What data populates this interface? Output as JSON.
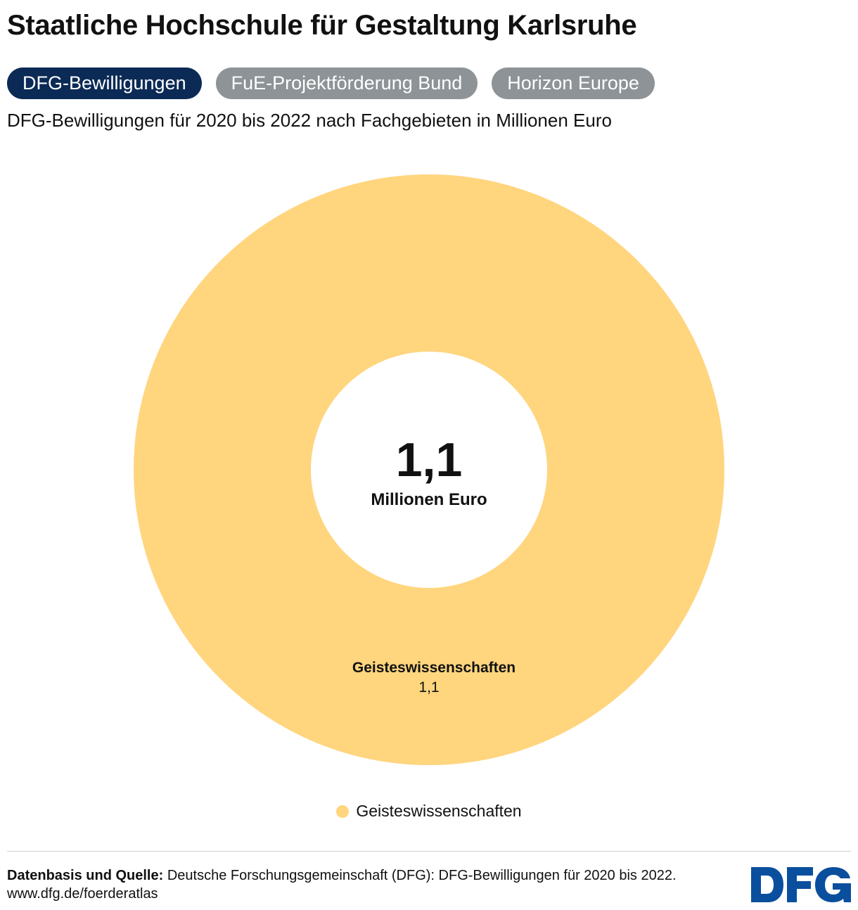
{
  "title": "Staatliche Hochschule für Gestaltung Karlsruhe",
  "tabs": [
    {
      "label": "DFG-Bewilligungen",
      "active": true
    },
    {
      "label": "FuE-Projektförderung Bund",
      "active": false
    },
    {
      "label": "Horizon Europe",
      "active": false
    }
  ],
  "subtitle": "DFG-Bewilligungen für 2020 bis 2022 nach Fachgebieten in Millionen Euro",
  "chart_data": {
    "type": "pie",
    "variant": "donut",
    "title": "DFG-Bewilligungen für 2020 bis 2022 nach Fachgebieten in Millionen Euro",
    "unit": "Millionen Euro",
    "total": 1.1,
    "total_label": "1,1",
    "center_unit_label": "Millionen Euro",
    "categories": [
      "Geisteswissenschaften"
    ],
    "values": [
      1.1
    ],
    "value_labels": [
      "1,1"
    ],
    "colors": [
      "#ffd57e"
    ],
    "legend": [
      "Geisteswissenschaften"
    ],
    "legend_position": "bottom"
  },
  "footer": {
    "source_label": "Datenbasis und Quelle:",
    "source_text": "Deutsche Forschungsgemeinschaft (DFG): DFG-Bewilligungen für 2020 bis 2022.",
    "url": "www.dfg.de/foerderatlas"
  },
  "logo": {
    "text": "DFG",
    "color": "#0a4f9e"
  },
  "colors": {
    "tab_active": "#0b2a55",
    "tab_inactive": "#8d9396",
    "donut_fill": "#ffd57e"
  }
}
